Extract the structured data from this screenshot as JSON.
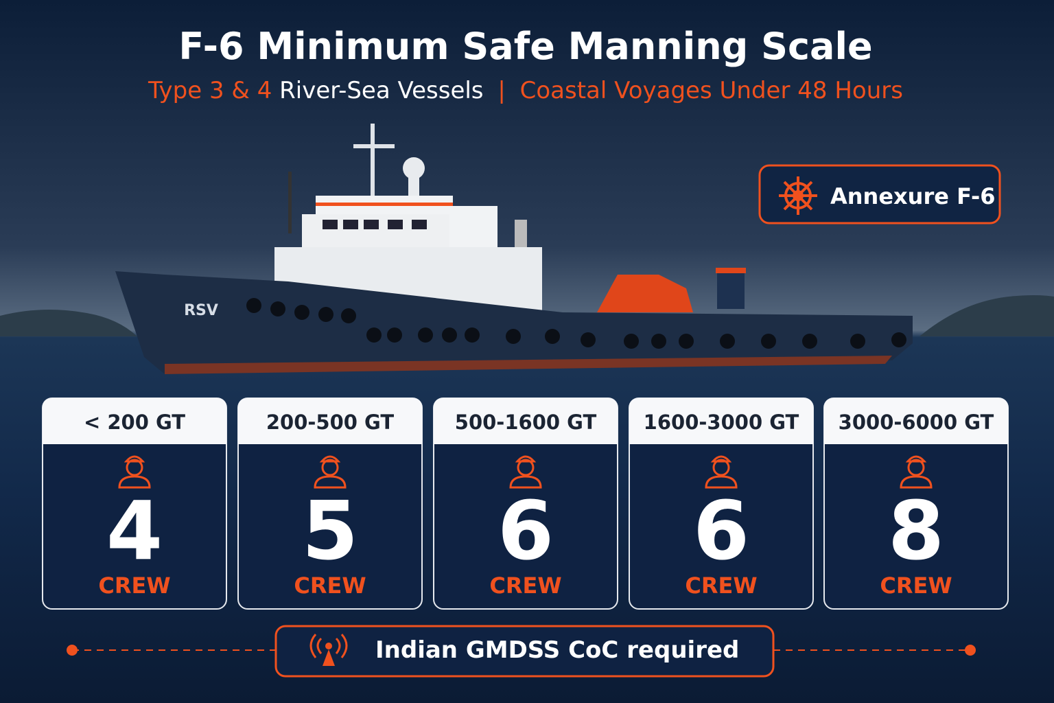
{
  "header": {
    "title": "F-6 Minimum Safe Manning Scale",
    "subtitle": {
      "part1": "Type 3 & 4",
      "part2": "River-Sea Vessels",
      "separator": "|",
      "part3": "Coastal Voyages Under 48 Hours"
    }
  },
  "badge": {
    "label": "Annexure F-6"
  },
  "ship": {
    "name": "RSV"
  },
  "cards": [
    {
      "range": "< 200 GT",
      "crew": 4,
      "unit": "CREW"
    },
    {
      "range": "200-500 GT",
      "crew": 5,
      "unit": "CREW"
    },
    {
      "range": "500-1600 GT",
      "crew": 6,
      "unit": "CREW"
    },
    {
      "range": "1600-3000 GT",
      "crew": 6,
      "unit": "CREW"
    },
    {
      "range": "3000-6000 GT",
      "crew": 8,
      "unit": "CREW"
    }
  ],
  "footer": {
    "note": "Indian GMDSS CoC required"
  }
}
